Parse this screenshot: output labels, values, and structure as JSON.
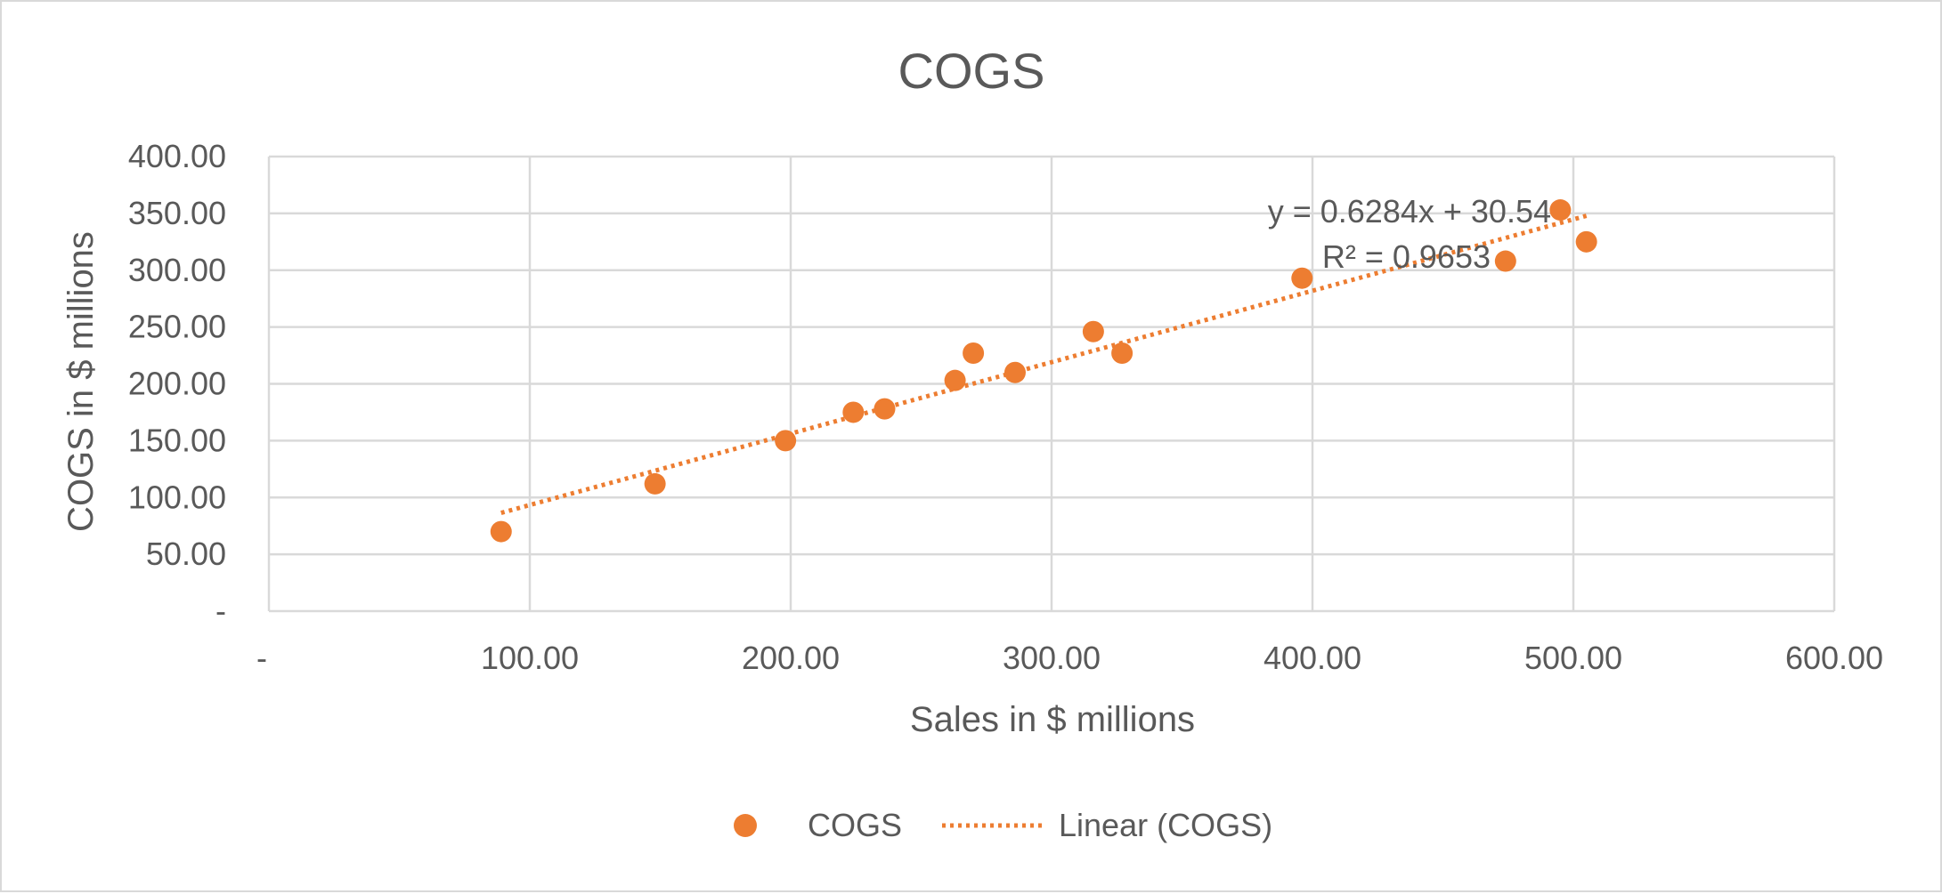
{
  "chart_data": {
    "type": "scatter",
    "title": "COGS",
    "xlabel": "Sales in $ millions",
    "ylabel": "COGS in $ millions",
    "xlim": [
      0,
      600
    ],
    "ylim": [
      0,
      400
    ],
    "x_ticks": [
      0,
      100,
      200,
      300,
      400,
      500,
      600
    ],
    "x_tick_labels": [
      "-",
      "100.00",
      "200.00",
      "300.00",
      "400.00",
      "500.00",
      "600.00"
    ],
    "y_ticks": [
      0,
      50,
      100,
      150,
      200,
      250,
      300,
      350,
      400
    ],
    "y_tick_labels": [
      "-",
      "50.00",
      "100.00",
      "150.00",
      "200.00",
      "250.00",
      "300.00",
      "350.00",
      "400.00"
    ],
    "grid": true,
    "legend_position": "bottom",
    "series": [
      {
        "name": "COGS",
        "color": "#ed7d31",
        "x": [
          89,
          148,
          198,
          224,
          236,
          263,
          270,
          286,
          316,
          327,
          396,
          474,
          495,
          505
        ],
        "y": [
          70,
          112,
          150,
          175,
          178,
          203,
          227,
          210,
          246,
          227,
          293,
          308,
          353,
          325
        ]
      }
    ],
    "trendline": {
      "name": "Linear (COGS)",
      "color": "#ed7d31",
      "slope": 0.6284,
      "intercept": 30.54,
      "x_range": [
        89,
        505
      ],
      "equation_label": "y = 0.6284x + 30.54",
      "r2_label": "R² = 0.9653"
    }
  }
}
